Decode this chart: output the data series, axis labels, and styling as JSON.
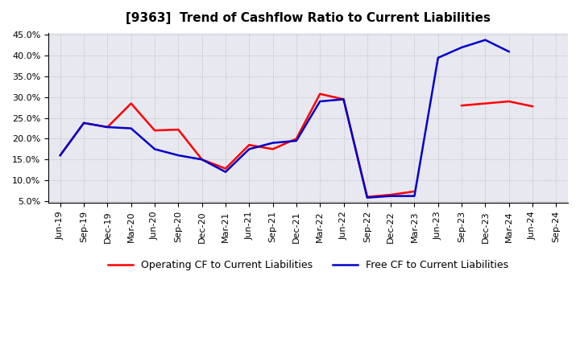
{
  "title": "[9363]  Trend of Cashflow Ratio to Current Liabilities",
  "x_labels": [
    "Jun-19",
    "Sep-19",
    "Dec-19",
    "Mar-20",
    "Jun-20",
    "Sep-20",
    "Dec-20",
    "Mar-21",
    "Jun-21",
    "Sep-21",
    "Dec-21",
    "Mar-22",
    "Jun-22",
    "Sep-22",
    "Dec-22",
    "Mar-23",
    "Jun-23",
    "Sep-23",
    "Dec-23",
    "Mar-24",
    "Jun-24",
    "Sep-24"
  ],
  "operating_cf": [
    0.16,
    0.238,
    0.228,
    0.285,
    0.22,
    0.222,
    0.15,
    0.128,
    0.185,
    0.175,
    0.2,
    0.308,
    0.295,
    0.06,
    0.065,
    0.073,
    null,
    0.28,
    0.285,
    0.29,
    0.278,
    null
  ],
  "free_cf": [
    0.16,
    0.238,
    0.228,
    0.225,
    0.175,
    0.16,
    0.15,
    0.12,
    0.175,
    0.19,
    0.195,
    0.29,
    0.295,
    0.058,
    0.062,
    0.062,
    0.395,
    0.42,
    0.438,
    0.41,
    null,
    null
  ],
  "ylim": [
    0.045,
    0.455
  ],
  "yticks": [
    0.05,
    0.1,
    0.15,
    0.2,
    0.25,
    0.3,
    0.35,
    0.4,
    0.45
  ],
  "operating_color": "#ff0000",
  "free_color": "#0000cc",
  "background_color": "#ffffff",
  "grid_color": "#aaaaaa",
  "plot_bg_color": "#e8e8f0",
  "legend_operating": "Operating CF to Current Liabilities",
  "legend_free": "Free CF to Current Liabilities"
}
